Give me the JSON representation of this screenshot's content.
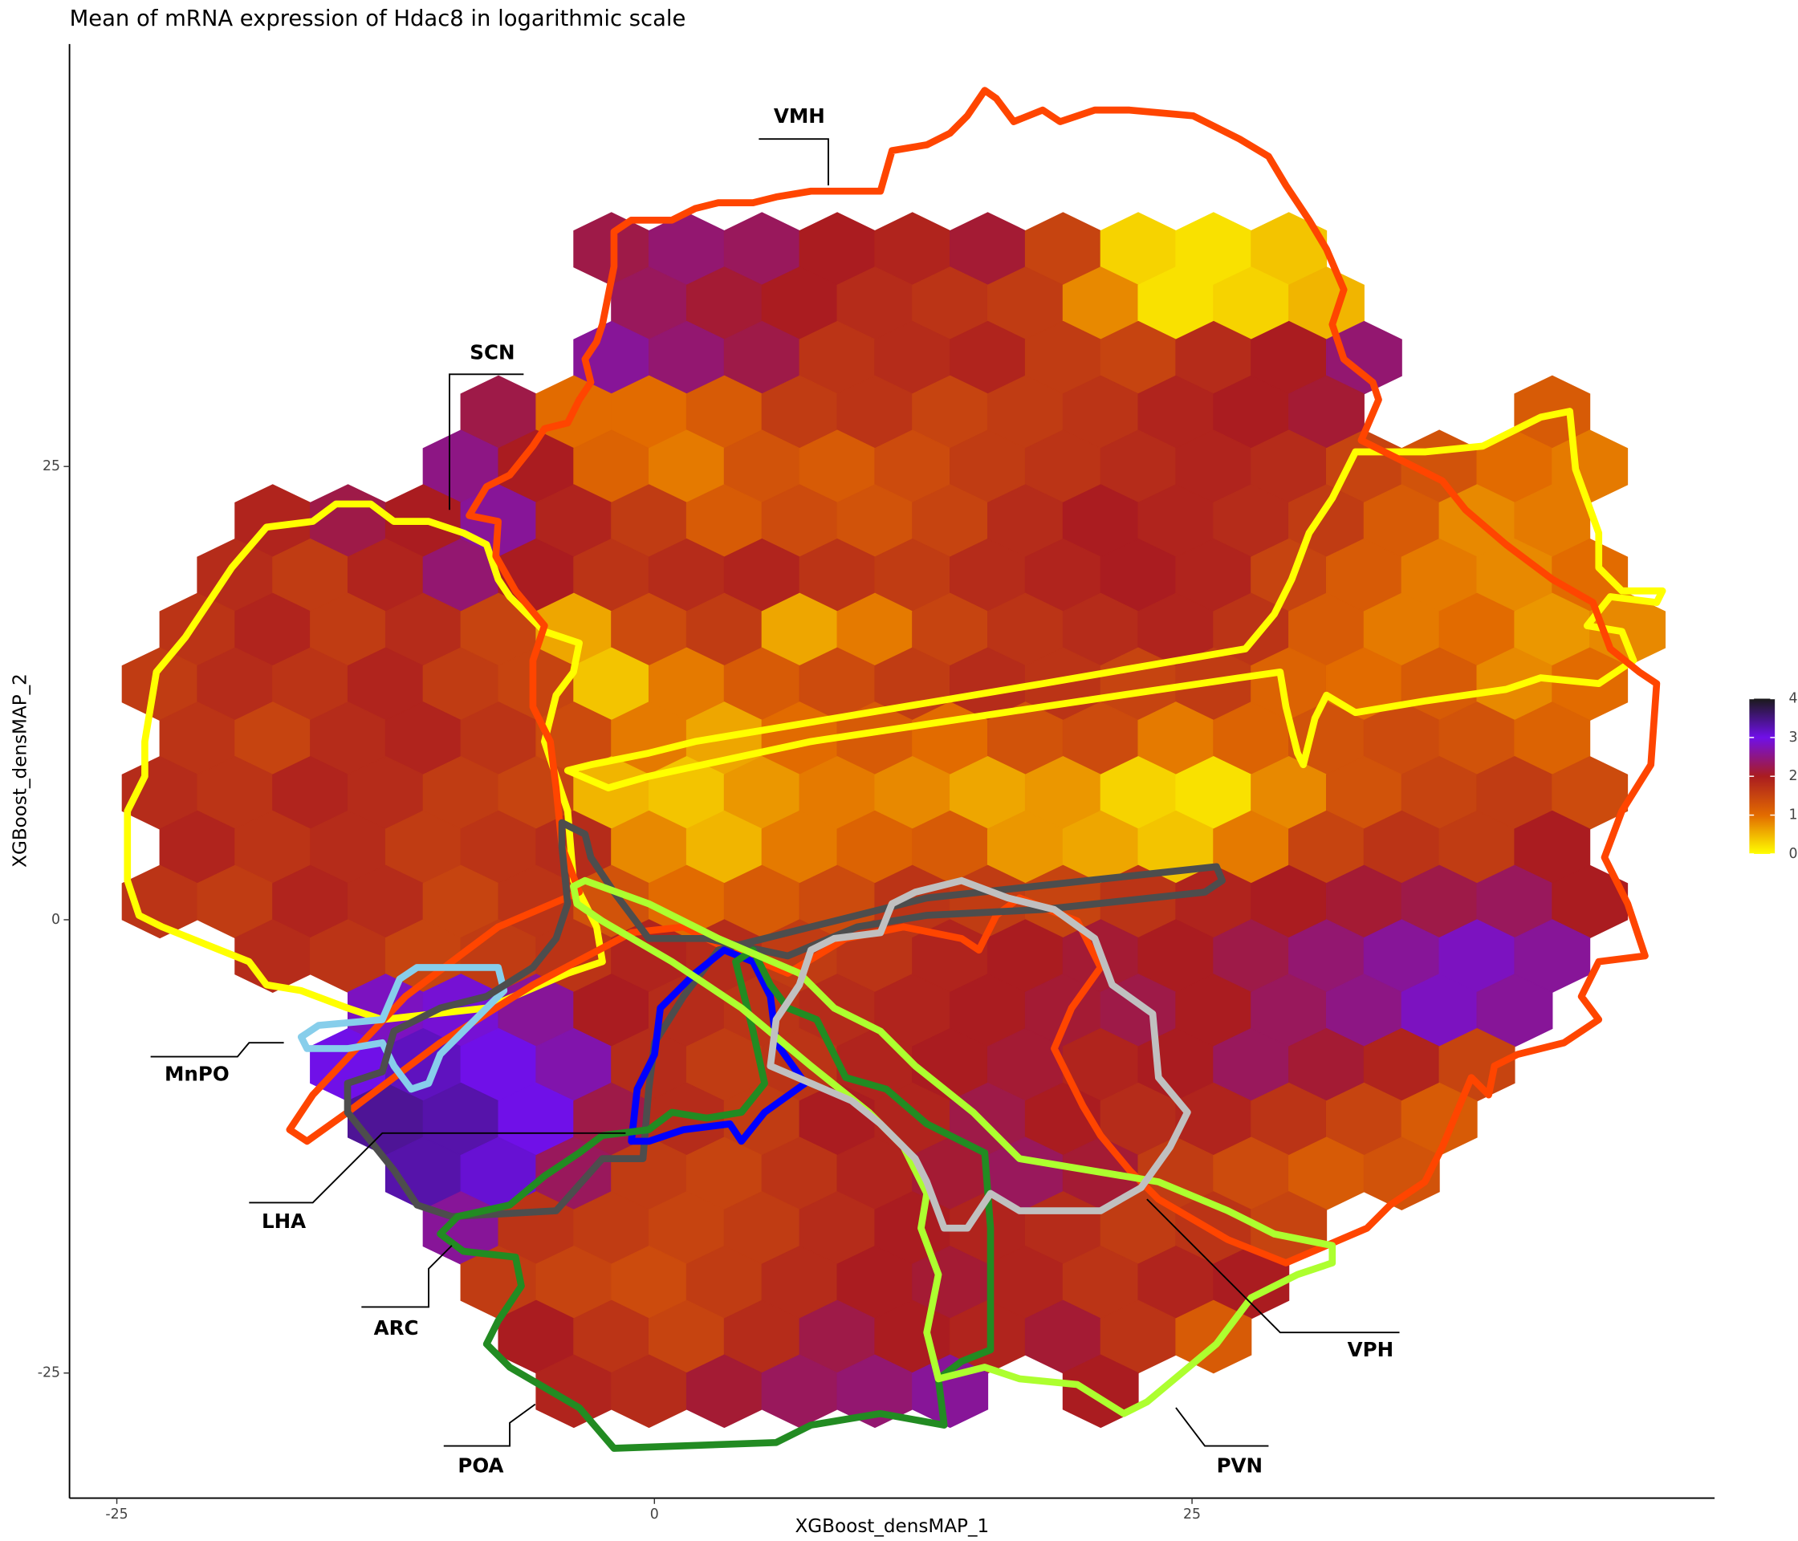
{
  "chart_data": {
    "type": "hexbin",
    "title": "Mean of mRNA expression of Hdac8 in logarithmic scale",
    "x_label": "XGBoost_densMAP_1",
    "y_label": "XGBoost_densMAP_2",
    "xlim": [
      -27.2,
      49.3
    ],
    "ylim": [
      -31.9,
      48.3
    ],
    "xticks": [
      -25,
      0,
      25
    ],
    "yticks": [
      -25,
      0,
      25
    ],
    "colorbar": {
      "lim": [
        0,
        4
      ],
      "ticks": [
        0,
        1,
        2,
        3,
        4
      ],
      "colorscale": [
        [
          0,
          "#ffff00"
        ],
        [
          1,
          "#e26b00"
        ],
        [
          2,
          "#aa1c20"
        ],
        [
          3,
          "#7010e8"
        ],
        [
          4,
          "#1a1a1a"
        ]
      ]
    },
    "regions": [
      "VMH",
      "SCN",
      "MnPO",
      "LHA",
      "ARC",
      "POA",
      "PVN",
      "VPH"
    ],
    "rows": [
      {
        "y": 37,
        "x": [
          -2,
          1.5,
          5,
          8.5,
          12,
          15.5,
          19,
          22.5,
          26,
          29.5
        ],
        "values": [
          2.2,
          2.4,
          2.3,
          2.0,
          1.9,
          2.1,
          1.5,
          0.3,
          0.2,
          0.4
        ]
      },
      {
        "y": 34,
        "x": [
          -0.25,
          3.25,
          6.75,
          10.25,
          13.75,
          17.25,
          20.75,
          24.25,
          27.75,
          31.25
        ],
        "values": [
          2.3,
          2.1,
          2.0,
          1.8,
          1.7,
          1.6,
          0.8,
          0.2,
          0.3,
          0.5
        ]
      },
      {
        "y": 31,
        "x": [
          -2,
          1.5,
          5,
          8.5,
          12,
          15.5,
          19,
          22.5,
          26,
          29.5,
          33
        ],
        "values": [
          2.6,
          2.4,
          2.2,
          1.7,
          1.8,
          1.9,
          1.6,
          1.5,
          1.8,
          2.0,
          2.4
        ]
      },
      {
        "y": 28,
        "x": [
          -7.25,
          -3.75,
          -0.25,
          3.25,
          6.75,
          10.25,
          13.75,
          17.25,
          20.75,
          24.25,
          27.75,
          31.25,
          41.75
        ],
        "values": [
          2.2,
          1.0,
          1.0,
          1.2,
          1.6,
          1.7,
          1.5,
          1.6,
          1.7,
          1.9,
          2.0,
          2.1,
          1.2
        ]
      },
      {
        "y": 25,
        "x": [
          -9,
          -5.5,
          -2,
          1.5,
          5,
          8.5,
          12,
          15.5,
          19,
          22.5,
          26,
          29.5,
          33,
          36.5,
          40,
          43.5
        ],
        "values": [
          2.5,
          2.0,
          1.1,
          0.9,
          1.3,
          1.2,
          1.4,
          1.6,
          1.7,
          1.8,
          1.9,
          1.8,
          1.5,
          1.3,
          1.0,
          0.9
        ]
      },
      {
        "y": 22,
        "x": [
          -17.75,
          -14.25,
          -10.75,
          -7.25,
          -3.75,
          -0.25,
          3.25,
          6.75,
          10.25,
          13.75,
          17.25,
          20.75,
          24.25,
          27.75,
          31.25,
          34.75,
          38.25,
          41.75
        ],
        "values": [
          1.9,
          2.2,
          2.0,
          2.6,
          1.9,
          1.6,
          1.2,
          1.4,
          1.3,
          1.5,
          1.8,
          2.0,
          1.9,
          1.8,
          1.6,
          1.2,
          0.8,
          0.9
        ]
      },
      {
        "y": 19,
        "x": [
          -19.5,
          -16,
          -12.5,
          -9,
          -5.5,
          -2,
          1.5,
          5,
          8.5,
          12,
          15.5,
          19,
          22.5,
          26,
          29.5,
          33,
          36.5,
          40,
          43.5
        ],
        "values": [
          1.8,
          1.6,
          1.9,
          2.4,
          2.0,
          1.7,
          1.8,
          1.9,
          1.7,
          1.6,
          1.8,
          1.9,
          2.0,
          1.9,
          1.5,
          1.2,
          0.9,
          0.8,
          1.0
        ]
      },
      {
        "y": 16,
        "x": [
          -21.25,
          -17.75,
          -14.25,
          -10.75,
          -7.25,
          -3.75,
          -0.25,
          3.25,
          6.75,
          10.25,
          13.75,
          17.25,
          20.75,
          24.25,
          27.75,
          31.25,
          34.75,
          38.25,
          41.75,
          45.25
        ],
        "values": [
          1.7,
          1.9,
          1.6,
          1.8,
          1.5,
          0.6,
          1.4,
          1.6,
          0.6,
          0.9,
          1.5,
          1.7,
          1.8,
          1.9,
          1.7,
          1.2,
          0.9,
          1.0,
          0.7,
          0.8
        ]
      },
      {
        "y": 13,
        "x": [
          -23,
          -19.5,
          -16,
          -12.5,
          -9,
          -5.5,
          -2,
          1.5,
          5,
          8.5,
          12,
          15.5,
          19,
          22.5,
          26,
          29.5,
          33,
          36.5,
          40,
          43.5
        ],
        "values": [
          1.6,
          1.8,
          1.7,
          1.9,
          1.6,
          1.5,
          0.4,
          0.9,
          1.2,
          1.4,
          1.6,
          1.8,
          1.7,
          1.5,
          1.6,
          1.1,
          1.0,
          1.2,
          0.8,
          1.0
        ]
      },
      {
        "y": 10,
        "x": [
          -21.25,
          -17.75,
          -14.25,
          -10.75,
          -7.25,
          -3.75,
          -0.25,
          3.25,
          6.75,
          10.25,
          13.75,
          17.25,
          20.75,
          24.25,
          27.75,
          31.25,
          34.75,
          38.25,
          41.75
        ],
        "values": [
          1.7,
          1.5,
          1.8,
          1.9,
          1.7,
          1.4,
          0.9,
          0.6,
          1.0,
          1.2,
          1.0,
          1.3,
          1.4,
          0.9,
          1.1,
          1.3,
          1.4,
          1.3,
          1.1
        ]
      },
      {
        "y": 7,
        "x": [
          -23,
          -19.5,
          -16,
          -12.5,
          -9,
          -5.5,
          -2,
          1.5,
          5,
          8.5,
          12,
          15.5,
          19,
          22.5,
          26,
          29.5,
          33,
          36.5,
          40,
          43.5
        ],
        "values": [
          1.8,
          1.7,
          1.9,
          1.8,
          1.6,
          1.5,
          0.5,
          0.4,
          0.7,
          0.9,
          0.8,
          0.6,
          0.7,
          0.3,
          0.2,
          0.8,
          1.3,
          1.5,
          1.6,
          1.4
        ]
      },
      {
        "y": 4,
        "x": [
          -21.25,
          -17.75,
          -14.25,
          -10.75,
          -7.25,
          -3.75,
          -0.25,
          3.25,
          6.75,
          10.25,
          13.75,
          17.25,
          20.75,
          24.25,
          27.75,
          31.25,
          34.75,
          38.25,
          41.75
        ],
        "values": [
          1.9,
          1.7,
          1.8,
          1.6,
          1.7,
          1.8,
          0.8,
          0.5,
          0.9,
          1.1,
          1.2,
          0.7,
          0.6,
          0.4,
          0.9,
          1.5,
          1.7,
          1.6,
          2.0
        ]
      },
      {
        "y": 1,
        "x": [
          -23,
          -19.5,
          -16,
          -12.5,
          -9,
          -5.5,
          -2,
          1.5,
          5,
          8.5,
          12,
          15.5,
          19,
          22.5,
          26,
          29.5,
          33,
          36.5,
          40,
          43.5
        ],
        "values": [
          1.7,
          1.6,
          1.9,
          1.8,
          1.5,
          1.7,
          1.3,
          1.0,
          1.2,
          1.4,
          1.7,
          1.6,
          1.5,
          1.7,
          1.9,
          2.0,
          2.1,
          2.2,
          2.3,
          2.0
        ]
      },
      {
        "y": -2,
        "x": [
          -17.75,
          -14.25,
          -10.75,
          -7.25,
          -3.75,
          -0.25,
          3.25,
          6.75,
          10.25,
          13.75,
          17.25,
          20.75,
          24.25,
          27.75,
          31.25,
          34.75,
          38.25,
          41.75
        ],
        "values": [
          1.8,
          1.7,
          1.5,
          1.6,
          1.7,
          1.9,
          1.8,
          1.6,
          1.7,
          1.9,
          2.0,
          2.1,
          2.0,
          2.2,
          2.4,
          2.6,
          2.8,
          2.6
        ]
      },
      {
        "y": -5,
        "x": [
          -12.5,
          -9,
          -5.5,
          -2,
          1.5,
          5,
          8.5,
          12,
          15.5,
          19,
          22.5,
          26,
          29.5,
          33,
          36.5,
          40
        ],
        "values": [
          2.8,
          2.9,
          2.6,
          2.0,
          1.8,
          1.7,
          1.8,
          1.9,
          2.0,
          2.1,
          2.2,
          2.0,
          2.3,
          2.5,
          2.8,
          2.6
        ]
      },
      {
        "y": -8,
        "x": [
          -14.25,
          -10.75,
          -7.25,
          -3.75,
          -0.25,
          3.25,
          6.75,
          10.25,
          13.75,
          17.25,
          20.75,
          24.25,
          27.75,
          31.25,
          34.75,
          38.25
        ],
        "values": [
          3.0,
          3.2,
          3.0,
          2.7,
          1.8,
          1.6,
          1.7,
          1.9,
          2.0,
          2.1,
          1.9,
          2.0,
          2.3,
          2.1,
          1.9,
          1.5
        ]
      },
      {
        "y": -11,
        "x": [
          -12.5,
          -9,
          -5.5,
          -2,
          1.5,
          5,
          8.5,
          12,
          15.5,
          19,
          22.5,
          26,
          29.5,
          33,
          36.5
        ],
        "values": [
          3.4,
          3.3,
          3.0,
          2.2,
          1.8,
          1.6,
          2.0,
          1.9,
          2.2,
          2.0,
          1.8,
          1.9,
          1.7,
          1.5,
          1.2
        ]
      },
      {
        "y": -14,
        "x": [
          -10.75,
          -7.25,
          -3.75,
          -0.25,
          3.25,
          6.75,
          10.25,
          13.75,
          17.25,
          20.75,
          24.25,
          27.75,
          31.25,
          34.75
        ],
        "values": [
          3.3,
          3.1,
          2.3,
          1.6,
          1.5,
          1.7,
          1.9,
          2.1,
          2.3,
          2.1,
          1.6,
          1.4,
          1.2,
          1.3
        ]
      },
      {
        "y": -17,
        "x": [
          -9,
          -5.5,
          -2,
          1.5,
          5,
          8.5,
          12,
          15.5,
          19,
          22.5,
          26,
          29.5
        ],
        "values": [
          2.6,
          1.7,
          1.6,
          1.5,
          1.6,
          1.8,
          2.0,
          1.9,
          1.8,
          1.6,
          1.7,
          1.5
        ]
      },
      {
        "y": -20,
        "x": [
          -7.25,
          -3.75,
          -0.25,
          3.25,
          6.75,
          10.25,
          13.75,
          17.25,
          20.75,
          24.25,
          27.75
        ],
        "values": [
          1.6,
          1.5,
          1.4,
          1.6,
          1.8,
          2.0,
          2.1,
          1.9,
          1.7,
          1.9,
          2.0
        ]
      },
      {
        "y": -23,
        "x": [
          -5.5,
          -2,
          1.5,
          5,
          8.5,
          12,
          15.5,
          19,
          22.5,
          26
        ],
        "values": [
          2.0,
          1.7,
          1.5,
          1.8,
          2.2,
          2.0,
          1.9,
          2.1,
          1.7,
          1.2
        ]
      },
      {
        "y": -26,
        "x": [
          -3.75,
          -0.25,
          3.25,
          6.75,
          10.25,
          13.75,
          20.75
        ],
        "values": [
          1.9,
          1.8,
          2.1,
          2.3,
          2.4,
          2.6,
          2.0
        ]
      }
    ]
  }
}
